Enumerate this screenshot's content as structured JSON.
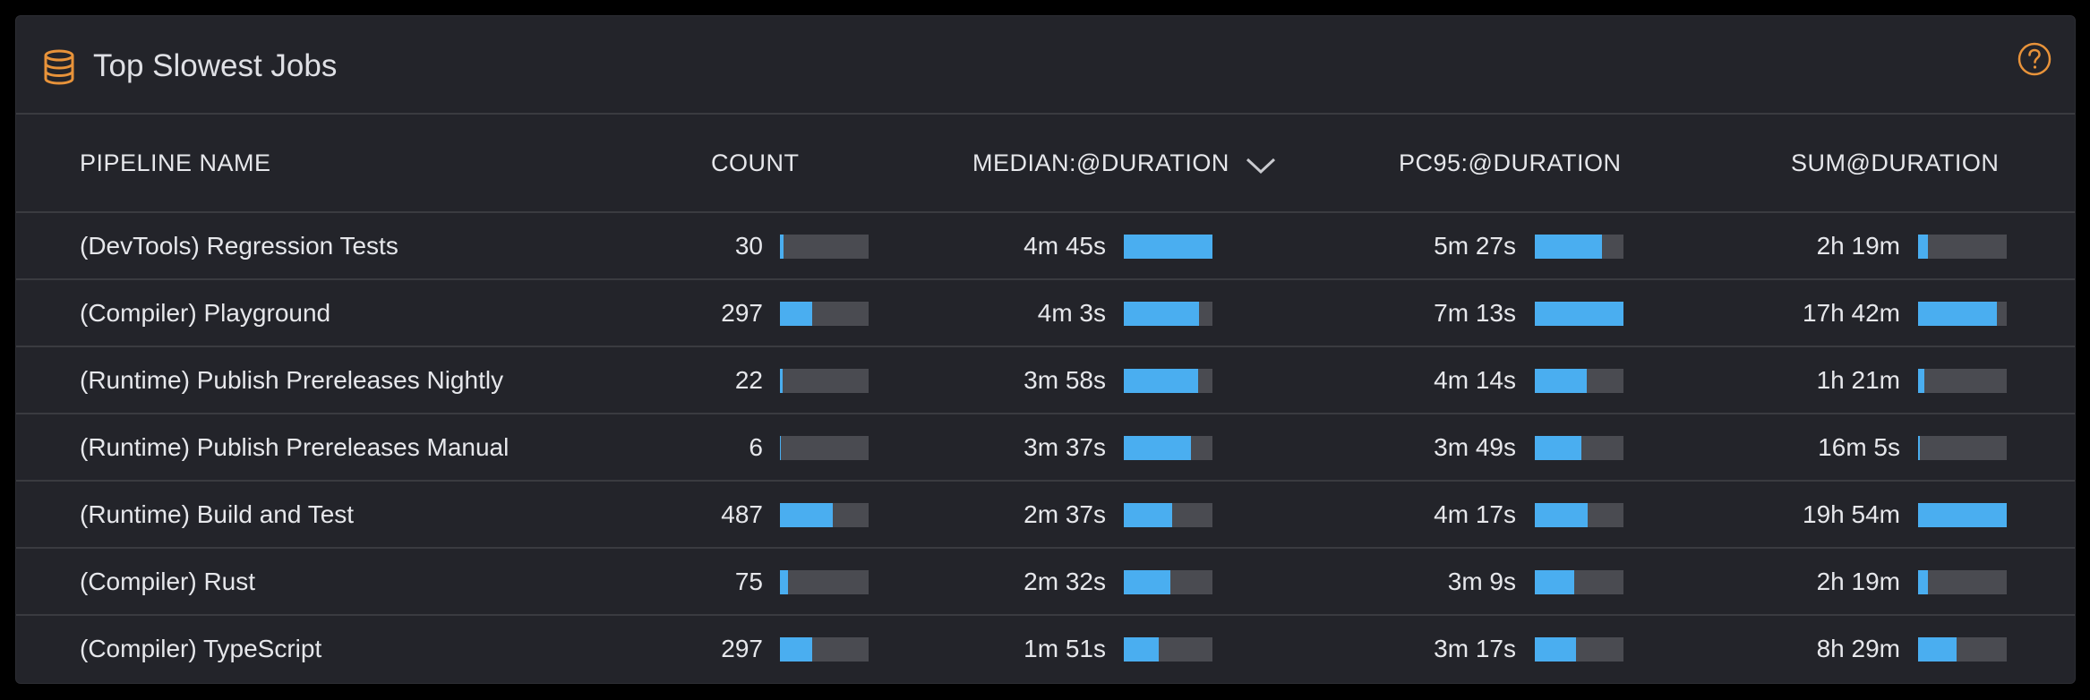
{
  "widget": {
    "title": "Top Slowest Jobs",
    "icons": {
      "title_icon": "database-icon",
      "help_icon": "help-circle-icon",
      "sort_icon": "chevron-down-icon"
    },
    "colors": {
      "accent": "#e8933a",
      "bar_fill": "#4aaef0",
      "bar_track": "#4a4b51",
      "background": "#23242a"
    }
  },
  "columns": [
    "PIPELINE NAME",
    "COUNT",
    "MEDIAN:@DURATION",
    "PC95:@DURATION",
    "SUM@DURATION"
  ],
  "sorted_column": "MEDIAN:@DURATION",
  "rows": [
    {
      "name": "(DevTools) Regression Tests",
      "count": "30",
      "count_pct": 0.04,
      "median": "4m 45s",
      "median_pct": 1.0,
      "pc95": "5m 27s",
      "pc95_pct": 0.76,
      "sum": "2h 19m",
      "sum_pct": 0.11
    },
    {
      "name": "(Compiler) Playground",
      "count": "297",
      "count_pct": 0.36,
      "median": "4m 3s",
      "median_pct": 0.85,
      "pc95": "7m 13s",
      "pc95_pct": 1.0,
      "sum": "17h 42m",
      "sum_pct": 0.89
    },
    {
      "name": "(Runtime) Publish Prereleases Nightly",
      "count": "22",
      "count_pct": 0.03,
      "median": "3m 58s",
      "median_pct": 0.84,
      "pc95": "4m 14s",
      "pc95_pct": 0.59,
      "sum": "1h 21m",
      "sum_pct": 0.07
    },
    {
      "name": "(Runtime) Publish Prereleases Manual",
      "count": "6",
      "count_pct": 0.01,
      "median": "3m 37s",
      "median_pct": 0.76,
      "pc95": "3m 49s",
      "pc95_pct": 0.53,
      "sum": "16m 5s",
      "sum_pct": 0.02
    },
    {
      "name": "(Runtime) Build and Test",
      "count": "487",
      "count_pct": 0.6,
      "median": "2m 37s",
      "median_pct": 0.55,
      "pc95": "4m 17s",
      "pc95_pct": 0.6,
      "sum": "19h 54m",
      "sum_pct": 1.0
    },
    {
      "name": "(Compiler) Rust",
      "count": "75",
      "count_pct": 0.09,
      "median": "2m 32s",
      "median_pct": 0.53,
      "pc95": "3m 9s",
      "pc95_pct": 0.44,
      "sum": "2h 19m",
      "sum_pct": 0.11
    },
    {
      "name": "(Compiler) TypeScript",
      "count": "297",
      "count_pct": 0.36,
      "median": "1m 51s",
      "median_pct": 0.39,
      "pc95": "3m 17s",
      "pc95_pct": 0.46,
      "sum": "8h 29m",
      "sum_pct": 0.43
    }
  ]
}
